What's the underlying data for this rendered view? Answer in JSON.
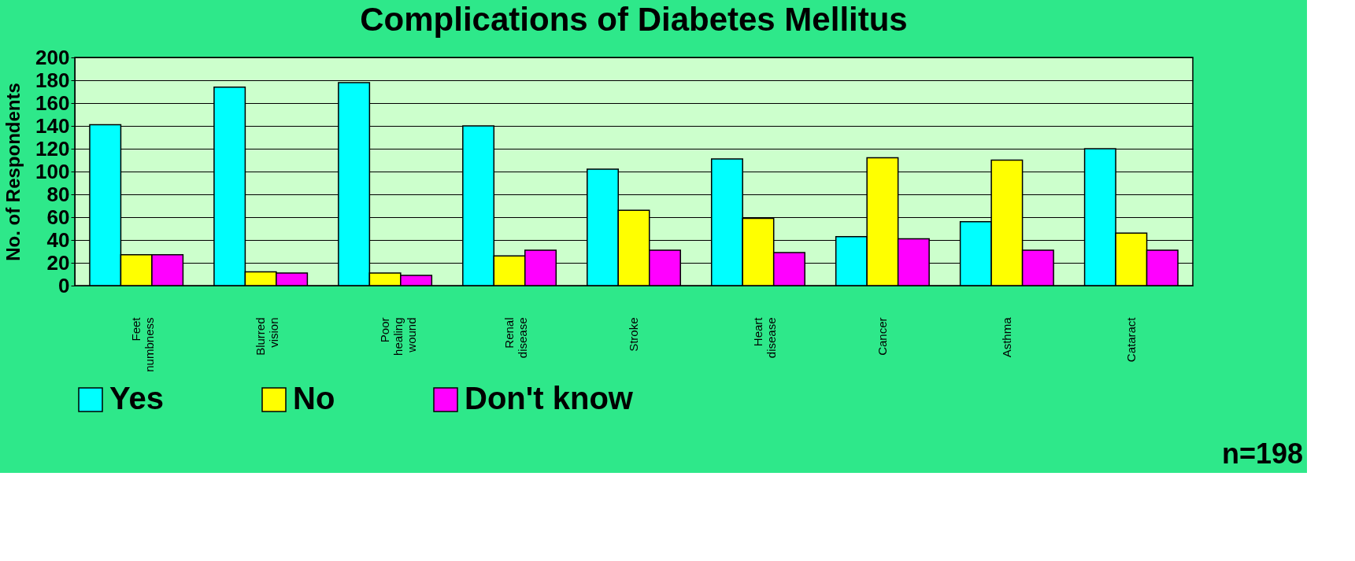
{
  "chart_data": {
    "type": "bar",
    "title": "Complications of Diabetes Mellitus",
    "ylabel": "No. of Respondents",
    "categories": [
      "Feet numbness",
      "Blurred vision",
      "Poor healing wound",
      "Renal disease",
      "Stroke",
      "Heart disease",
      "Cancer",
      "Asthma",
      "Cataract"
    ],
    "series": [
      {
        "name": "Yes",
        "color": "#00ffff",
        "values": [
          141,
          174,
          178,
          140,
          102,
          111,
          43,
          56,
          120
        ]
      },
      {
        "name": "No",
        "color": "#ffff00",
        "values": [
          27,
          12,
          11,
          26,
          66,
          59,
          112,
          110,
          46
        ]
      },
      {
        "name": "Don't know",
        "color": "#ff00ff",
        "values": [
          27,
          11,
          9,
          31,
          31,
          29,
          41,
          31,
          31
        ]
      }
    ],
    "ylim": [
      0,
      200
    ],
    "yticks": [
      0,
      20,
      40,
      60,
      80,
      100,
      120,
      140,
      160,
      180,
      200
    ],
    "grid": "y",
    "legend": "bottom",
    "annotations": [
      "n=198"
    ]
  }
}
